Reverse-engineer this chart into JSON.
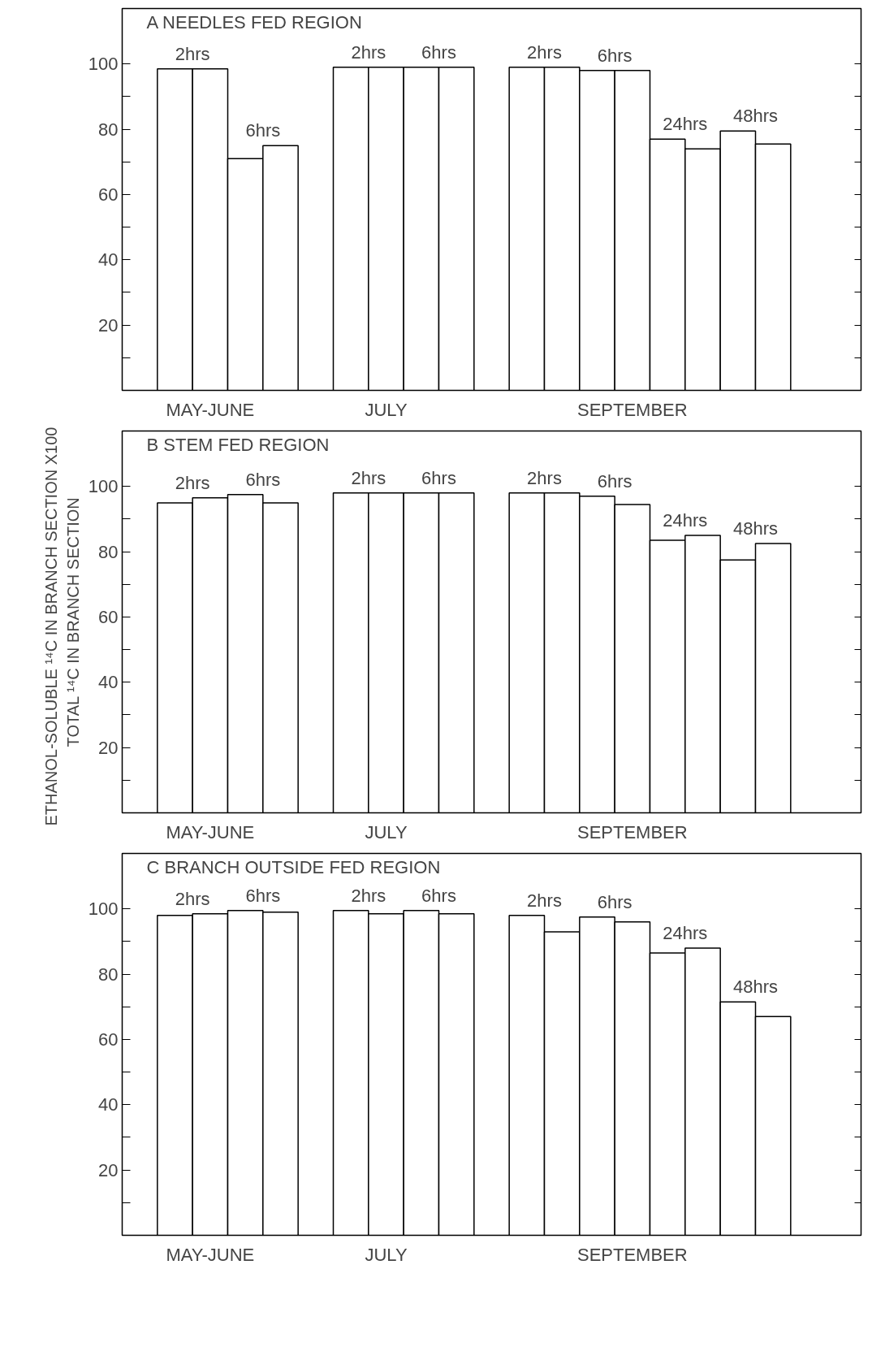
{
  "chart_data": [
    {
      "type": "bar",
      "title": "A NEEDLES FED REGION",
      "categories": [
        null,
        null,
        "MAY-JUNE",
        null,
        null,
        null,
        null,
        "JULY",
        null,
        null,
        null,
        null,
        null,
        null,
        "SEPTEMBER",
        null,
        null,
        null,
        null,
        null,
        null
      ],
      "values": [
        null,
        98.5,
        98.5,
        71,
        75,
        null,
        99,
        99,
        99,
        99,
        null,
        99,
        99,
        98,
        98,
        77,
        74,
        79.5,
        75.5,
        null,
        null
      ],
      "color": "#ffffff",
      "ylim": [
        0,
        117
      ],
      "yticks": [
        {
          "value": 10,
          "label": null
        },
        20,
        {
          "value": 30,
          "label": null
        },
        40,
        {
          "value": 50,
          "label": null
        },
        60,
        {
          "value": 70,
          "label": null
        },
        80,
        {
          "value": 90,
          "label": null
        },
        100
      ],
      "grid": false,
      "annotations": [
        "2hrs",
        "6hrs",
        "2hrs",
        "6hrs",
        "2hrs",
        "6hrs",
        "24hrs",
        "48hrs"
      ]
    },
    {
      "type": "bar",
      "title": "B STEM FED REGION",
      "ylabel": "ETHANOL-SOLUBLE ¹⁴C IN BRANCH SECTION   X100\nTOTAL ¹⁴C IN BRANCH SECTION",
      "categories": [
        null,
        null,
        "MAY-JUNE",
        null,
        null,
        null,
        null,
        "JULY",
        null,
        null,
        null,
        null,
        null,
        null,
        "SEPTEMBER",
        null,
        null,
        null,
        null,
        null,
        null
      ],
      "values": [
        null,
        95,
        96.5,
        97.5,
        95,
        null,
        98,
        98,
        98,
        98,
        null,
        98,
        98,
        97,
        94.5,
        83.5,
        85,
        77.5,
        82.5,
        null,
        null
      ],
      "color": "#ffffff",
      "ylim": [
        0,
        117
      ],
      "yticks": [
        {
          "value": 10,
          "label": null
        },
        20,
        {
          "value": 30,
          "label": null
        },
        40,
        {
          "value": 50,
          "label": null
        },
        60,
        {
          "value": 70,
          "label": null
        },
        80,
        {
          "value": 90,
          "label": null
        },
        100
      ],
      "grid": false,
      "annotations": [
        "2hrs",
        "6hrs",
        "2hrs",
        "6hrs",
        "2hrs",
        "6hrs",
        "24hrs",
        "48hrs"
      ]
    },
    {
      "type": "bar",
      "title": "C BRANCH OUTSIDE FED REGION",
      "categories": [
        null,
        null,
        "MAY-JUNE",
        null,
        null,
        null,
        null,
        "JULY",
        null,
        null,
        null,
        null,
        null,
        null,
        "SEPTEMBER",
        null,
        null,
        null,
        null,
        null,
        null
      ],
      "values": [
        null,
        98,
        98.5,
        99.5,
        99,
        null,
        99.5,
        98.5,
        99.5,
        98.5,
        null,
        98,
        93,
        97.5,
        96,
        86.5,
        88,
        71.5,
        67,
        null,
        null
      ],
      "color": "#ffffff",
      "ylim": [
        0,
        117
      ],
      "yticks": [
        {
          "value": 10,
          "label": null
        },
        20,
        {
          "value": 30,
          "label": null
        },
        40,
        {
          "value": 50,
          "label": null
        },
        60,
        {
          "value": 70,
          "label": null
        },
        80,
        {
          "value": 90,
          "label": null
        },
        100
      ],
      "grid": false,
      "annotations": [
        "2hrs",
        "6hrs",
        "2hrs",
        "6hrs",
        "2hrs",
        "6hrs",
        "24hrs",
        "48hrs"
      ]
    }
  ]
}
